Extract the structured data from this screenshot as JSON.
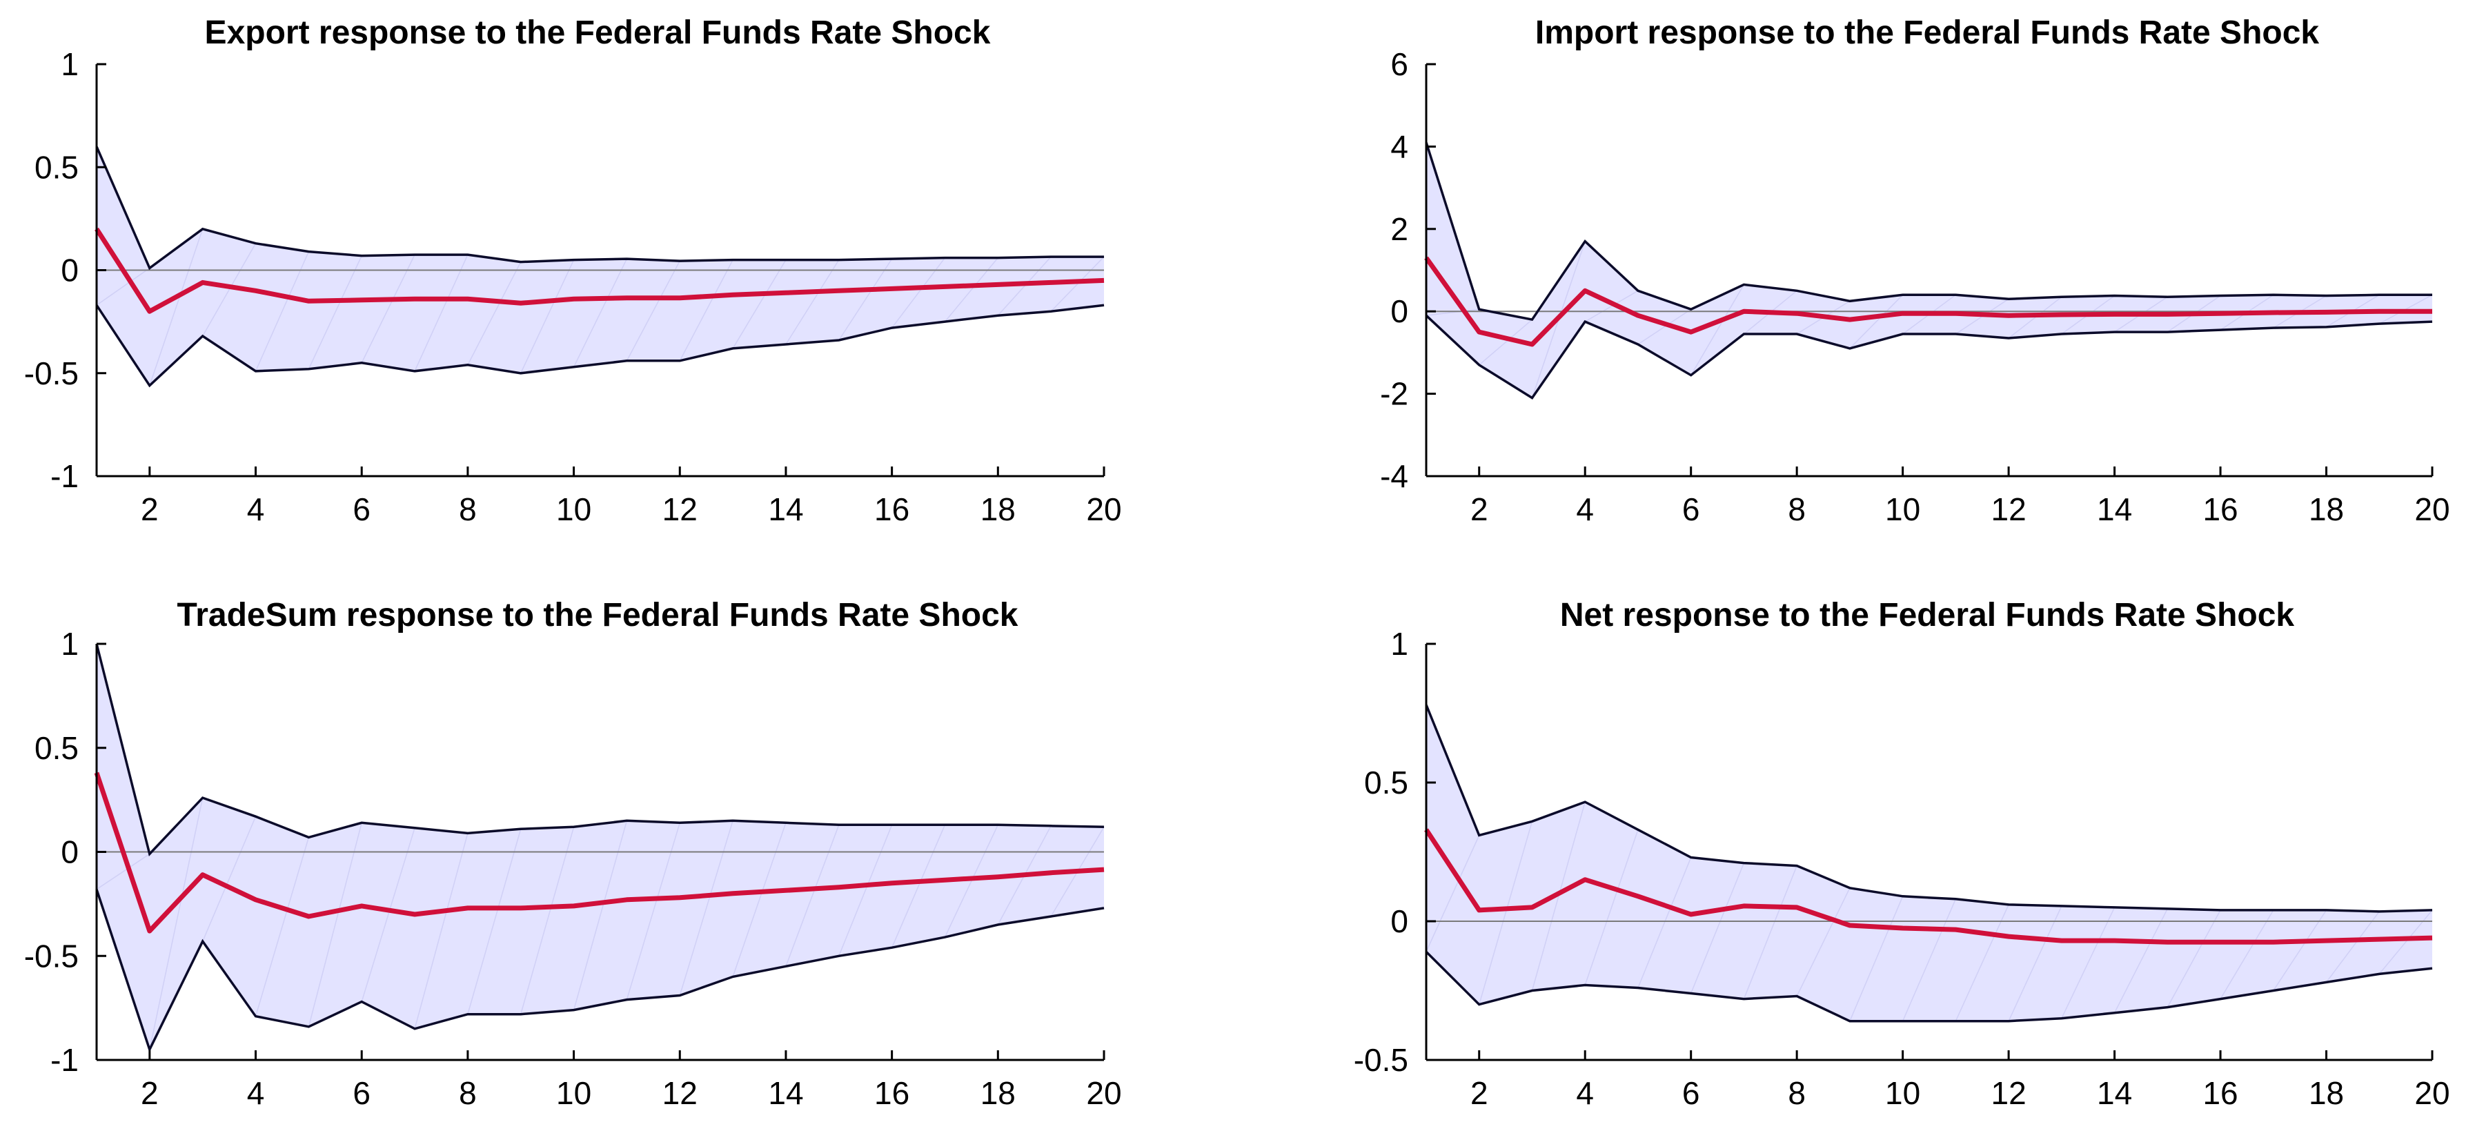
{
  "colors": {
    "response_line": "#d0103a",
    "band_fill": "#e3e3ff",
    "band_edge": "#0b0b2a",
    "axis": "#000000",
    "zero_line": "#7a7a7a"
  },
  "chart_data": [
    {
      "type": "line",
      "title": "Export response to the Federal Funds Rate Shock",
      "xlabel": "",
      "ylabel": "",
      "xlim": [
        1,
        20
      ],
      "ylim": [
        -1,
        1
      ],
      "grid": false,
      "x": [
        1,
        2,
        3,
        4,
        5,
        6,
        7,
        8,
        9,
        10,
        11,
        12,
        13,
        14,
        15,
        16,
        17,
        18,
        19,
        20
      ],
      "xticks": [
        2,
        4,
        6,
        8,
        10,
        12,
        14,
        16,
        18,
        20
      ],
      "xtick_labels": [
        "2",
        "4",
        "6",
        "8",
        "10",
        "12",
        "14",
        "16",
        "18",
        "20"
      ],
      "yticks": [
        -1,
        -0.5,
        0,
        0.5,
        1
      ],
      "ytick_labels": [
        "-1",
        "-0.5",
        "0",
        "0.5",
        "1"
      ],
      "series": [
        {
          "role": "response",
          "values": [
            0.2,
            -0.2,
            -0.06,
            -0.1,
            -0.15,
            -0.145,
            -0.14,
            -0.14,
            -0.16,
            -0.14,
            -0.135,
            -0.135,
            -0.12,
            -0.11,
            -0.1,
            -0.09,
            -0.08,
            -0.07,
            -0.06,
            -0.05
          ]
        },
        {
          "role": "upper_band",
          "values": [
            0.6,
            0.01,
            0.2,
            0.13,
            0.09,
            0.07,
            0.075,
            0.075,
            0.04,
            0.05,
            0.055,
            0.045,
            0.05,
            0.05,
            0.05,
            0.055,
            0.06,
            0.06,
            0.065,
            0.065
          ]
        },
        {
          "role": "lower_band",
          "values": [
            -0.17,
            -0.56,
            -0.32,
            -0.49,
            -0.48,
            -0.45,
            -0.49,
            -0.46,
            -0.5,
            -0.47,
            -0.44,
            -0.44,
            -0.38,
            -0.36,
            -0.34,
            -0.28,
            -0.25,
            -0.22,
            -0.2,
            -0.17
          ]
        }
      ]
    },
    {
      "type": "line",
      "title": "Import response to the Federal Funds Rate Shock",
      "xlabel": "",
      "ylabel": "",
      "xlim": [
        1,
        20
      ],
      "ylim": [
        -4,
        6
      ],
      "grid": false,
      "x": [
        1,
        2,
        3,
        4,
        5,
        6,
        7,
        8,
        9,
        10,
        11,
        12,
        13,
        14,
        15,
        16,
        17,
        18,
        19,
        20
      ],
      "xticks": [
        2,
        4,
        6,
        8,
        10,
        12,
        14,
        16,
        18,
        20
      ],
      "xtick_labels": [
        "2",
        "4",
        "6",
        "8",
        "10",
        "12",
        "14",
        "16",
        "18",
        "20"
      ],
      "yticks": [
        -4,
        -2,
        0,
        2,
        4,
        6
      ],
      "ytick_labels": [
        "-4",
        "-2",
        "0",
        "2",
        "4",
        "6"
      ],
      "series": [
        {
          "role": "response",
          "values": [
            1.3,
            -0.5,
            -0.8,
            0.5,
            -0.1,
            -0.5,
            0.0,
            -0.05,
            -0.2,
            -0.05,
            -0.05,
            -0.1,
            -0.08,
            -0.07,
            -0.07,
            -0.05,
            -0.03,
            -0.02,
            0.0,
            0.0
          ]
        },
        {
          "role": "upper_band",
          "values": [
            4.1,
            0.05,
            -0.2,
            1.7,
            0.5,
            0.05,
            0.65,
            0.5,
            0.25,
            0.4,
            0.4,
            0.3,
            0.35,
            0.38,
            0.35,
            0.38,
            0.4,
            0.38,
            0.4,
            0.4
          ]
        },
        {
          "role": "lower_band",
          "values": [
            -0.1,
            -1.3,
            -2.1,
            -0.25,
            -0.8,
            -1.55,
            -0.55,
            -0.55,
            -0.9,
            -0.55,
            -0.55,
            -0.65,
            -0.55,
            -0.5,
            -0.5,
            -0.45,
            -0.4,
            -0.38,
            -0.3,
            -0.25
          ]
        }
      ]
    },
    {
      "type": "line",
      "title": "TradeSum response to the Federal Funds Rate Shock",
      "xlabel": "",
      "ylabel": "",
      "xlim": [
        1,
        20
      ],
      "ylim": [
        -1,
        1
      ],
      "grid": false,
      "x": [
        1,
        2,
        3,
        4,
        5,
        6,
        7,
        8,
        9,
        10,
        11,
        12,
        13,
        14,
        15,
        16,
        17,
        18,
        19,
        20
      ],
      "xticks": [
        2,
        4,
        6,
        8,
        10,
        12,
        14,
        16,
        18,
        20
      ],
      "xtick_labels": [
        "2",
        "4",
        "6",
        "8",
        "10",
        "12",
        "14",
        "16",
        "18",
        "20"
      ],
      "yticks": [
        -1,
        -0.5,
        0,
        0.5,
        1
      ],
      "ytick_labels": [
        "-1",
        "-0.5",
        "0",
        "0.5",
        "1"
      ],
      "series": [
        {
          "role": "response",
          "values": [
            0.38,
            -0.38,
            -0.11,
            -0.23,
            -0.31,
            -0.26,
            -0.3,
            -0.27,
            -0.27,
            -0.26,
            -0.23,
            -0.22,
            -0.2,
            -0.185,
            -0.17,
            -0.15,
            -0.135,
            -0.12,
            -0.1,
            -0.085
          ]
        },
        {
          "role": "upper_band",
          "values": [
            1.0,
            -0.01,
            0.26,
            0.17,
            0.07,
            0.14,
            0.115,
            0.09,
            0.11,
            0.12,
            0.15,
            0.14,
            0.15,
            0.14,
            0.13,
            0.13,
            0.13,
            0.13,
            0.125,
            0.12
          ]
        },
        {
          "role": "lower_band",
          "values": [
            -0.18,
            -0.95,
            -0.43,
            -0.79,
            -0.84,
            -0.72,
            -0.85,
            -0.78,
            -0.78,
            -0.76,
            -0.71,
            -0.69,
            -0.6,
            -0.55,
            -0.5,
            -0.46,
            -0.41,
            -0.35,
            -0.31,
            -0.27
          ]
        }
      ]
    },
    {
      "type": "line",
      "title": "Net response to the Federal Funds Rate Shock",
      "xlabel": "",
      "ylabel": "",
      "xlim": [
        1,
        20
      ],
      "ylim": [
        -0.5,
        1
      ],
      "grid": false,
      "x": [
        1,
        2,
        3,
        4,
        5,
        6,
        7,
        8,
        9,
        10,
        11,
        12,
        13,
        14,
        15,
        16,
        17,
        18,
        19,
        20
      ],
      "xticks": [
        2,
        4,
        6,
        8,
        10,
        12,
        14,
        16,
        18,
        20
      ],
      "xtick_labels": [
        "2",
        "4",
        "6",
        "8",
        "10",
        "12",
        "14",
        "16",
        "18",
        "20"
      ],
      "yticks": [
        -0.5,
        0,
        0.5,
        1
      ],
      "ytick_labels": [
        "-0.5",
        "0",
        "0.5",
        "1"
      ],
      "series": [
        {
          "role": "response",
          "values": [
            0.33,
            0.04,
            0.05,
            0.15,
            0.09,
            0.025,
            0.055,
            0.05,
            -0.015,
            -0.025,
            -0.03,
            -0.055,
            -0.07,
            -0.07,
            -0.075,
            -0.075,
            -0.075,
            -0.07,
            -0.065,
            -0.06
          ]
        },
        {
          "role": "upper_band",
          "values": [
            0.78,
            0.31,
            0.36,
            0.43,
            0.33,
            0.23,
            0.21,
            0.2,
            0.12,
            0.09,
            0.08,
            0.06,
            0.055,
            0.05,
            0.045,
            0.04,
            0.04,
            0.04,
            0.035,
            0.04
          ]
        },
        {
          "role": "lower_band",
          "values": [
            -0.11,
            -0.3,
            -0.25,
            -0.23,
            -0.24,
            -0.26,
            -0.28,
            -0.27,
            -0.36,
            -0.36,
            -0.36,
            -0.36,
            -0.35,
            -0.33,
            -0.31,
            -0.28,
            -0.25,
            -0.22,
            -0.19,
            -0.17
          ]
        }
      ]
    }
  ]
}
